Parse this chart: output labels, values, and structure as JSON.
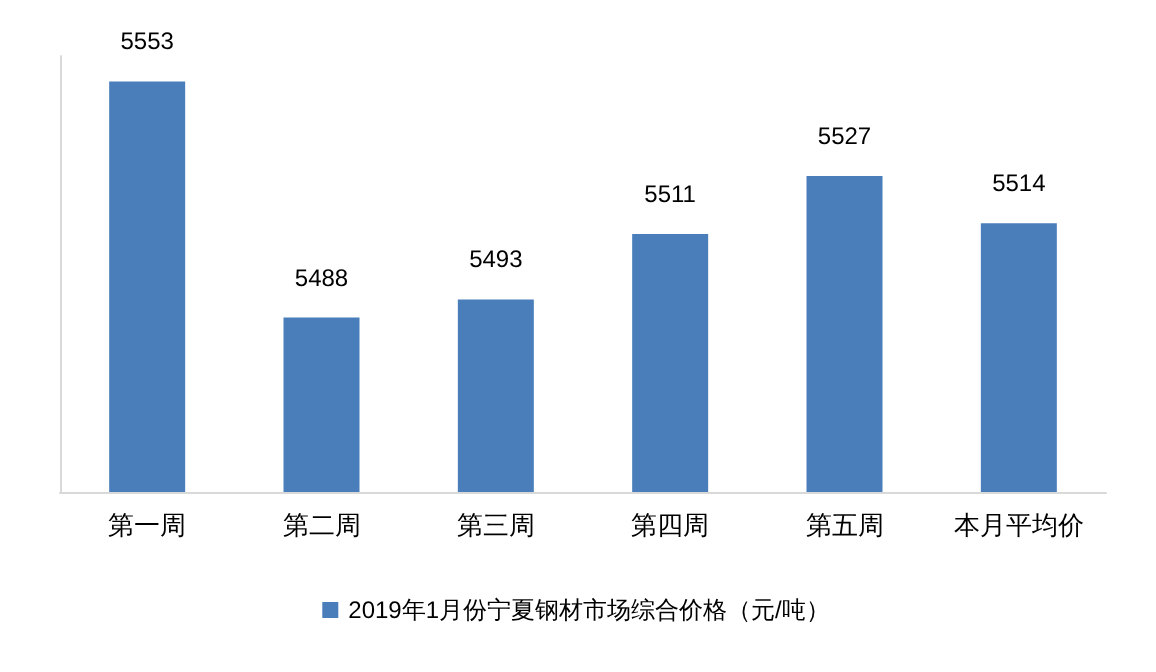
{
  "chart_data": {
    "type": "bar",
    "categories": [
      "第一周",
      "第二周",
      "第三周",
      "第四周",
      "第五周",
      "本月平均价"
    ],
    "series": [
      {
        "name": "2019年1月份宁夏钢材市场综合价格（元/吨）",
        "color": "#4a7ebb",
        "values": [
          5553,
          5488,
          5493,
          5511,
          5527,
          5514
        ]
      }
    ],
    "ylim": [
      5440,
      5560
    ],
    "data_labels": true,
    "legend": "bottom",
    "grid": false,
    "tick_labels": "x"
  }
}
